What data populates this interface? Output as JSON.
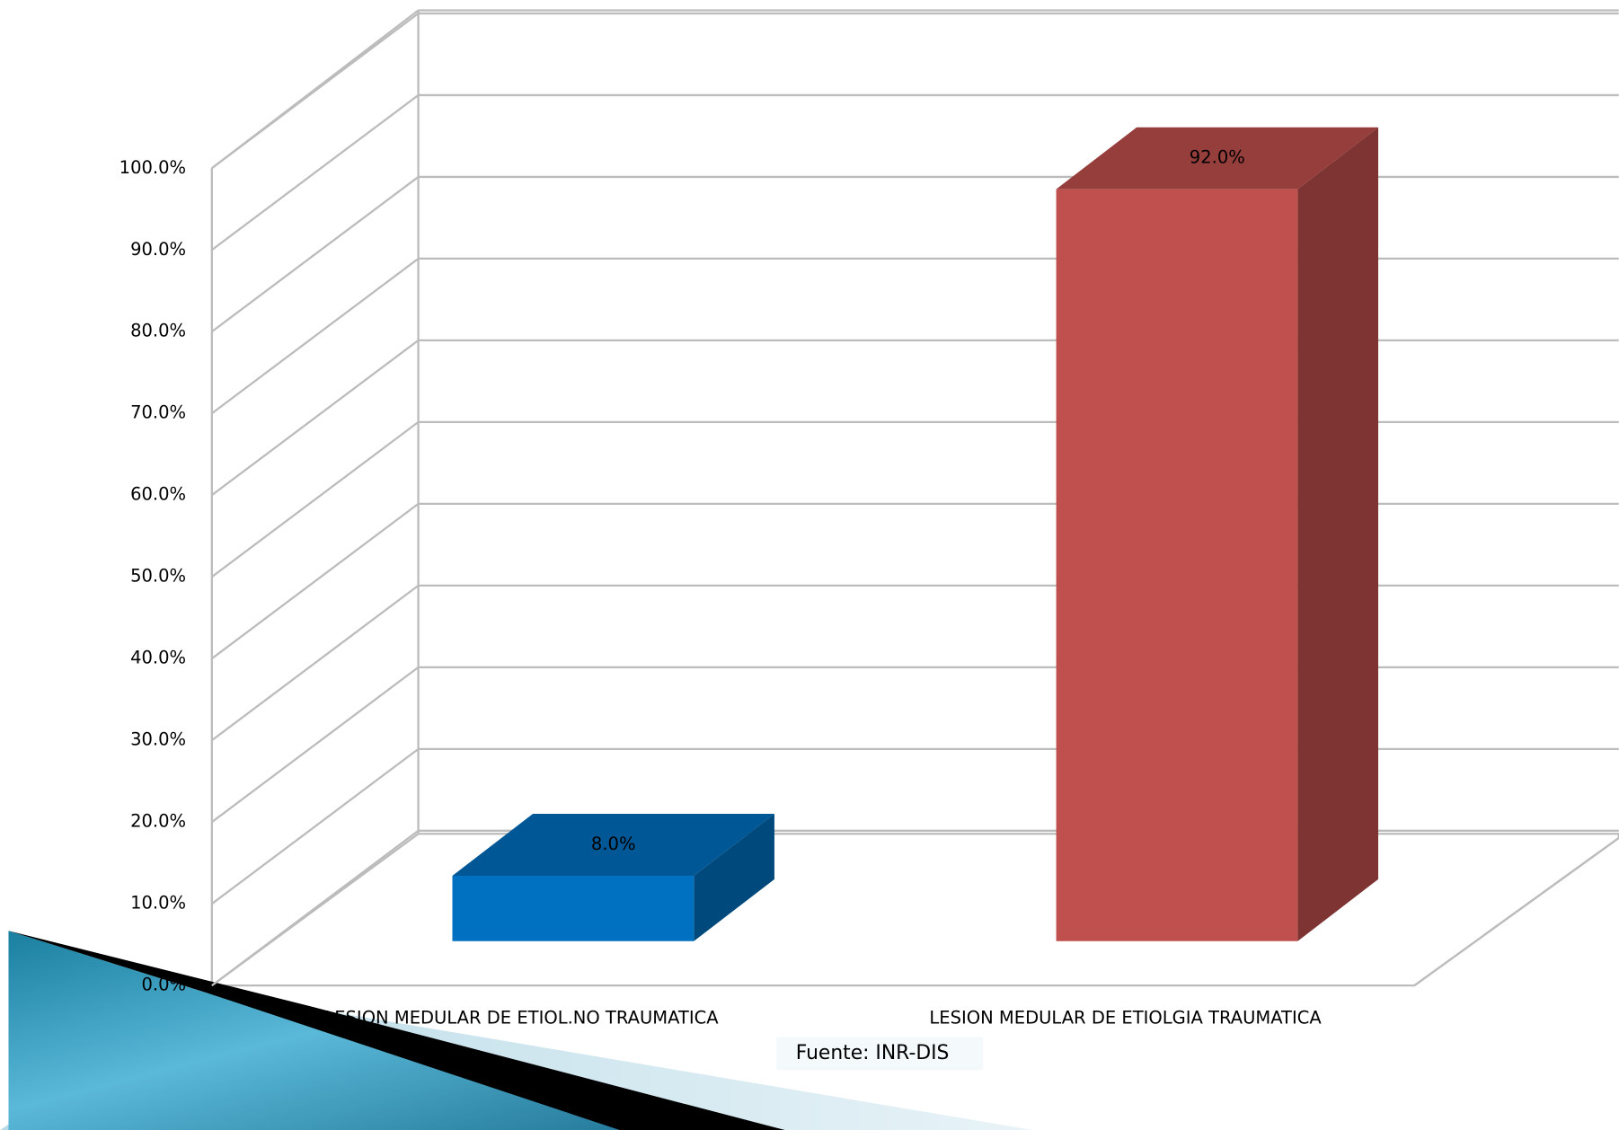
{
  "chart_data": {
    "type": "bar3d",
    "categories": [
      "LESION MEDULAR DE ETIOL.NO TRAUMATICA",
      "LESION MEDULAR DE ETIOLGIA TRAUMATICA"
    ],
    "values": [
      8,
      92
    ],
    "value_labels": [
      "8.0%",
      "92.0%"
    ],
    "colors": [
      "#0070c0",
      "#c0504d"
    ],
    "ylim": [
      0,
      100
    ],
    "yticks": [
      {
        "value": 0,
        "label": "0.0%"
      },
      {
        "value": 10,
        "label": "10.0%"
      },
      {
        "value": 20,
        "label": "20.0%"
      },
      {
        "value": 30,
        "label": "30.0%"
      },
      {
        "value": 40,
        "label": "40.0%"
      },
      {
        "value": 50,
        "label": "50.0%"
      },
      {
        "value": 60,
        "label": "60.0%"
      },
      {
        "value": 70,
        "label": "70.0%"
      },
      {
        "value": 80,
        "label": "80.0%"
      },
      {
        "value": 90,
        "label": "90.0%"
      },
      {
        "value": 100,
        "label": "100.0%"
      }
    ],
    "grid": true,
    "source": "Fuente: INR-DIS"
  }
}
